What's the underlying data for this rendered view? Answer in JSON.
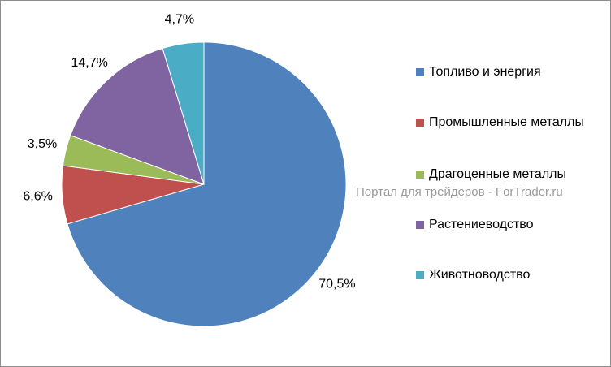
{
  "chart_data": {
    "type": "pie",
    "categories": [
      "Топливо и энергия",
      "Промышленные металлы",
      "Драгоценные металлы",
      "Растениеводство",
      "Животноводство"
    ],
    "values": [
      70.5,
      6.6,
      3.5,
      14.7,
      4.7
    ],
    "value_labels": [
      "70,5%",
      "6,6%",
      "3,5%",
      "14,7%",
      "4,7%"
    ],
    "colors": [
      "#4f81bd",
      "#c0504d",
      "#9bbb59",
      "#8064a2",
      "#4bacc6"
    ],
    "watermark": "Портал для трейдеров - ForTrader.ru"
  }
}
